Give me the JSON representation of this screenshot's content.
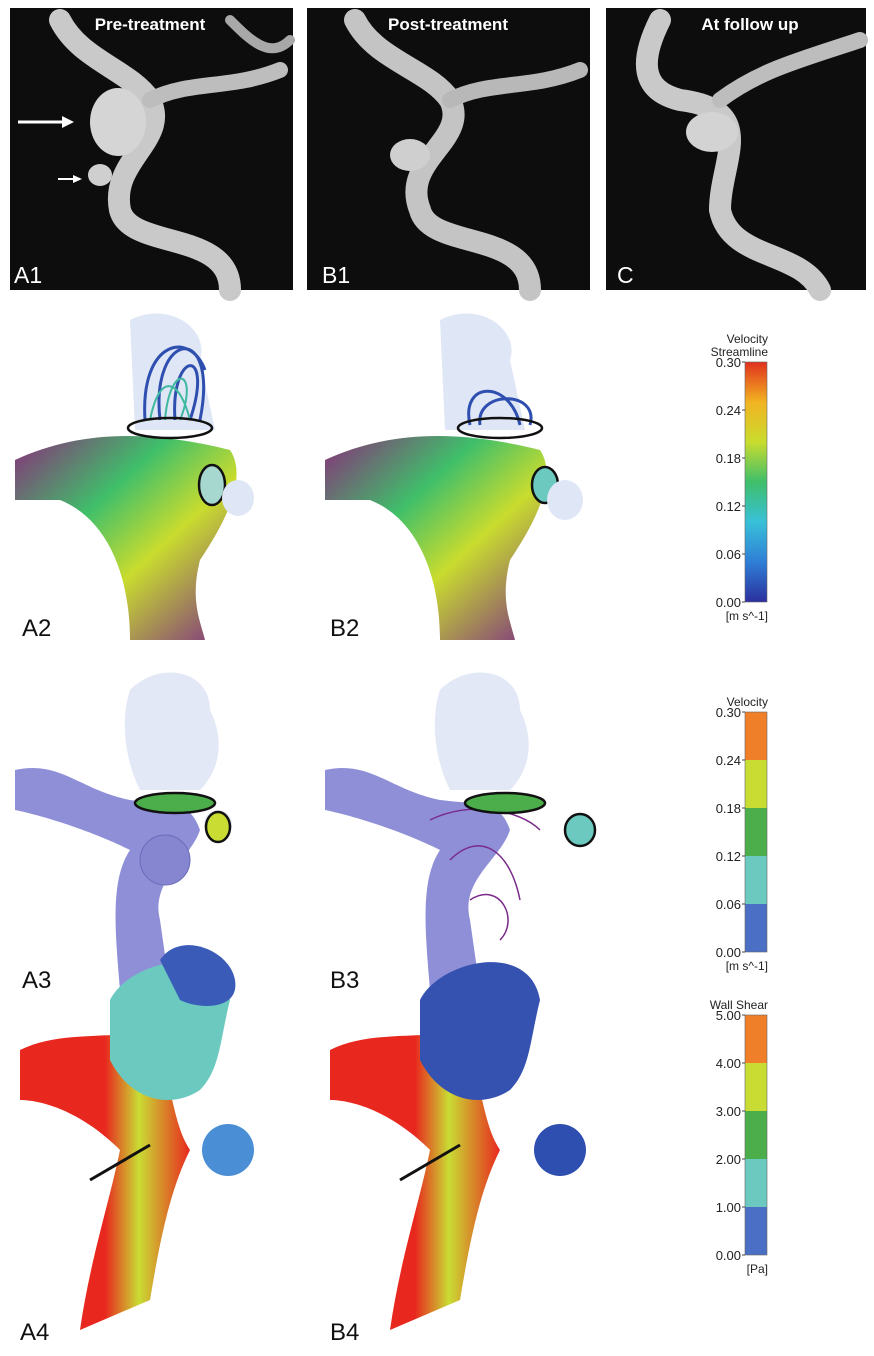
{
  "panels": [
    {
      "label": "A1",
      "title": "Pre-treatment"
    },
    {
      "label": "B1",
      "title": "Post-treatment"
    },
    {
      "label": "C",
      "title": "At follow up"
    }
  ],
  "row_labels": [
    "A2",
    "B2",
    "A3",
    "B3",
    "A4",
    "B4"
  ],
  "colorbars": [
    {
      "title": [
        "Velocity",
        "Streamline"
      ],
      "unit": "[m s^-1]",
      "style": "continuous",
      "colors": [
        "#2b2f9e",
        "#2f7fd6",
        "#38c0d8",
        "#3fbf6a",
        "#c9dc2e",
        "#f2b322",
        "#e0301e"
      ],
      "ticks": [
        {
          "value": 0.3,
          "label": "0.30"
        },
        {
          "value": 0.24,
          "label": "0.24"
        },
        {
          "value": 0.18,
          "label": "0.18"
        },
        {
          "value": 0.12,
          "label": "0.12"
        },
        {
          "value": 0.06,
          "label": "0.06"
        },
        {
          "value": 0,
          "label": "0.00"
        }
      ]
    },
    {
      "title": [
        "Velocity"
      ],
      "unit": "[m s^-1]",
      "style": "banded",
      "colors": [
        "#4a6fc4",
        "#6cc9c0",
        "#4cae4a",
        "#c9dc34",
        "#f07f2a"
      ],
      "ticks": [
        {
          "value": 0.3,
          "label": "0.30"
        },
        {
          "value": 0.24,
          "label": "0.24"
        },
        {
          "value": 0.18,
          "label": "0.18"
        },
        {
          "value": 0.12,
          "label": "0.12"
        },
        {
          "value": 0.06,
          "label": "0.06"
        },
        {
          "value": 0,
          "label": "0.00"
        }
      ]
    },
    {
      "title": [
        "Wall Shear"
      ],
      "unit": "[Pa]",
      "style": "banded",
      "colors": [
        "#4a6fc4",
        "#6cc9c0",
        "#4cae4a",
        "#c9dc34",
        "#f07f2a"
      ],
      "ticks": [
        {
          "value": 5,
          "label": "5.00"
        },
        {
          "value": 4,
          "label": "4.00"
        },
        {
          "value": 3,
          "label": "3.00"
        },
        {
          "value": 2,
          "label": "2.00"
        },
        {
          "value": 1,
          "label": "1.00"
        },
        {
          "value": 0,
          "label": "0.00"
        }
      ]
    }
  ]
}
